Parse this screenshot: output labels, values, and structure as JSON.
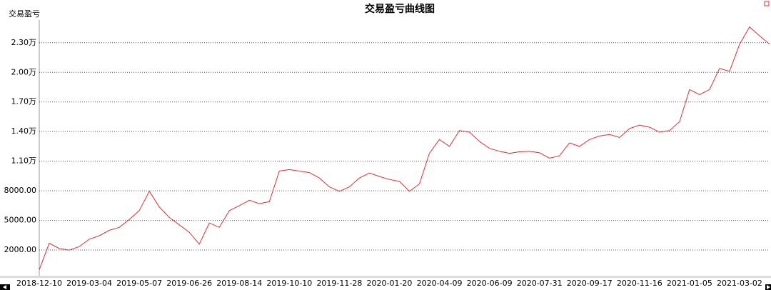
{
  "chart_data": {
    "type": "line",
    "title": "交易盈亏曲线图",
    "y_label": "交易盈亏",
    "categories": [
      "2018-12-10",
      null,
      null,
      null,
      null,
      "2019-03-04",
      null,
      null,
      null,
      null,
      "2019-05-07",
      null,
      null,
      null,
      null,
      "2019-06-26",
      null,
      null,
      null,
      null,
      "2019-08-14",
      null,
      null,
      null,
      null,
      "2019-10-10",
      null,
      null,
      null,
      null,
      "2019-11-28",
      null,
      null,
      null,
      null,
      "2020-01-20",
      null,
      null,
      null,
      null,
      "2020-04-09",
      null,
      null,
      null,
      null,
      "2020-06-09",
      null,
      null,
      null,
      null,
      "2020-07-31",
      null,
      null,
      null,
      null,
      "2020-09-17",
      null,
      null,
      null,
      null,
      "2020-11-16",
      null,
      null,
      null,
      null,
      "2021-01-05",
      null,
      null,
      null,
      null,
      "2021-03-02",
      null,
      null,
      null
    ],
    "series": [
      {
        "color": "#e03030",
        "values": [
          0,
          2700,
          2150,
          2000,
          2350,
          3100,
          3450,
          4000,
          4300,
          5100,
          6000,
          7950,
          6350,
          5300,
          4550,
          3800,
          2600,
          4750,
          4300,
          6000,
          6500,
          7050,
          6700,
          6900,
          10000,
          10150,
          10000,
          9850,
          9300,
          8400,
          7950,
          8400,
          9300,
          9800,
          9450,
          9150,
          8950,
          7950,
          8700,
          11800,
          13200,
          12500,
          14100,
          13950,
          13000,
          12300,
          12000,
          11800,
          11950,
          12000,
          11850,
          11300,
          11550,
          12850,
          12500,
          13200,
          13550,
          13700,
          13400,
          14300,
          14650,
          14450,
          13950,
          14100,
          15000,
          18250,
          17750,
          18250,
          20400,
          20100,
          22850,
          24600,
          23700,
          22850
        ]
      }
    ],
    "ylim": [
      -600,
      25300
    ],
    "yticks": [
      {
        "value": 2000,
        "label": "2000.00"
      },
      {
        "value": 5000,
        "label": "5000.00"
      },
      {
        "value": 8000,
        "label": "8000.00"
      },
      {
        "value": 11000,
        "label": "1.10万"
      },
      {
        "value": 14000,
        "label": "1.40万"
      },
      {
        "value": 17000,
        "label": "1.70万"
      },
      {
        "value": 20000,
        "label": "2.00万"
      },
      {
        "value": 23000,
        "label": "2.30万"
      }
    ],
    "grid": true
  }
}
